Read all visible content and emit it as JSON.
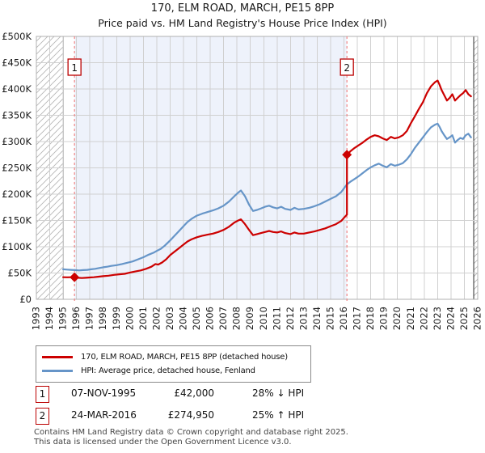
{
  "page": {
    "title": "170, ELM ROAD, MARCH, PE15 8PP",
    "subtitle": "Price paid vs. HM Land Registry's House Price Index (HPI)"
  },
  "chart_data": {
    "type": "line",
    "title": "170, ELM ROAD, MARCH, PE15 8PP — Price paid vs. HPI",
    "x_axis": {
      "min": 1993,
      "max": 2026,
      "ticks": [
        1993,
        1994,
        1995,
        1996,
        1997,
        1998,
        1999,
        2000,
        2001,
        2002,
        2003,
        2004,
        2005,
        2006,
        2007,
        2008,
        2009,
        2010,
        2011,
        2012,
        2013,
        2014,
        2015,
        2016,
        2017,
        2018,
        2019,
        2020,
        2021,
        2022,
        2023,
        2024,
        2025,
        2026
      ]
    },
    "y_axis": {
      "min": 0,
      "max": 500000,
      "ticks": [
        {
          "value": 0,
          "label": "£0"
        },
        {
          "value": 50000,
          "label": "£50K"
        },
        {
          "value": 100000,
          "label": "£100K"
        },
        {
          "value": 150000,
          "label": "£150K"
        },
        {
          "value": 200000,
          "label": "£200K"
        },
        {
          "value": 250000,
          "label": "£250K"
        },
        {
          "value": 300000,
          "label": "£300K"
        },
        {
          "value": 350000,
          "label": "£350K"
        },
        {
          "value": 400000,
          "label": "£400K"
        },
        {
          "value": 450000,
          "label": "£450K"
        },
        {
          "value": 500000,
          "label": "£500K"
        }
      ]
    },
    "grid": true,
    "colors": {
      "grid": "#d0d0d0",
      "frame": "#b0b0b0",
      "boundary": "#4d4d4d",
      "dashed_line": "#f07a7a",
      "hatch": "#b3b3b3",
      "badge_border": "#bb0000",
      "shade": "#eef2fb"
    },
    "shaded_span": {
      "from": 1995.85,
      "to": 2016.22
    },
    "hatched_regions": [
      {
        "from": 1993.0,
        "to": 1995.0,
        "edge": "right"
      },
      {
        "from": 2025.7,
        "to": 2026.0,
        "edge": "left"
      }
    ],
    "series": [
      {
        "name": "170, ELM ROAD, MARCH, PE15 8PP (detached house)",
        "color": "#cc0000",
        "points": [
          [
            1995.0,
            42000
          ],
          [
            1995.3,
            41800
          ],
          [
            1995.6,
            42000
          ],
          [
            1995.85,
            42000
          ],
          [
            1996.1,
            41000
          ],
          [
            1996.4,
            40500
          ],
          [
            1996.7,
            41000
          ],
          [
            1997.0,
            41500
          ],
          [
            1997.3,
            42000
          ],
          [
            1997.6,
            43000
          ],
          [
            1998.0,
            44000
          ],
          [
            1998.4,
            45000
          ],
          [
            1998.8,
            46500
          ],
          [
            1999.2,
            47500
          ],
          [
            1999.6,
            48500
          ],
          [
            2000.0,
            51000
          ],
          [
            2000.4,
            53000
          ],
          [
            2000.8,
            55000
          ],
          [
            2001.2,
            58000
          ],
          [
            2001.6,
            62000
          ],
          [
            2001.9,
            67000
          ],
          [
            2002.1,
            66000
          ],
          [
            2002.4,
            70000
          ],
          [
            2002.7,
            76000
          ],
          [
            2003.0,
            84000
          ],
          [
            2003.3,
            90000
          ],
          [
            2003.6,
            96000
          ],
          [
            2004.0,
            104000
          ],
          [
            2004.3,
            110000
          ],
          [
            2004.6,
            114000
          ],
          [
            2005.0,
            118000
          ],
          [
            2005.4,
            121000
          ],
          [
            2005.8,
            123000
          ],
          [
            2006.2,
            125000
          ],
          [
            2006.6,
            128000
          ],
          [
            2007.0,
            132000
          ],
          [
            2007.4,
            138000
          ],
          [
            2007.8,
            146000
          ],
          [
            2008.1,
            150000
          ],
          [
            2008.3,
            152000
          ],
          [
            2008.6,
            143000
          ],
          [
            2008.9,
            132000
          ],
          [
            2009.2,
            122000
          ],
          [
            2009.5,
            124000
          ],
          [
            2009.8,
            126000
          ],
          [
            2010.1,
            128000
          ],
          [
            2010.4,
            130000
          ],
          [
            2010.7,
            128000
          ],
          [
            2011.0,
            127000
          ],
          [
            2011.3,
            129000
          ],
          [
            2011.6,
            126000
          ],
          [
            2012.0,
            124000
          ],
          [
            2012.3,
            127000
          ],
          [
            2012.6,
            125000
          ],
          [
            2013.0,
            125000
          ],
          [
            2013.4,
            127000
          ],
          [
            2013.8,
            129000
          ],
          [
            2014.2,
            132000
          ],
          [
            2014.6,
            135000
          ],
          [
            2015.0,
            139000
          ],
          [
            2015.4,
            143000
          ],
          [
            2015.8,
            149000
          ],
          [
            2016.0,
            155000
          ],
          [
            2016.22,
            161000
          ],
          [
            2016.22,
            274950
          ],
          [
            2016.5,
            282000
          ],
          [
            2016.8,
            288000
          ],
          [
            2017.1,
            293000
          ],
          [
            2017.4,
            298000
          ],
          [
            2017.7,
            304000
          ],
          [
            2018.0,
            309000
          ],
          [
            2018.3,
            312000
          ],
          [
            2018.6,
            310000
          ],
          [
            2018.9,
            306000
          ],
          [
            2019.2,
            303000
          ],
          [
            2019.5,
            309000
          ],
          [
            2019.8,
            306000
          ],
          [
            2020.1,
            308000
          ],
          [
            2020.4,
            312000
          ],
          [
            2020.7,
            320000
          ],
          [
            2021.0,
            335000
          ],
          [
            2021.3,
            348000
          ],
          [
            2021.6,
            362000
          ],
          [
            2021.9,
            375000
          ],
          [
            2022.2,
            392000
          ],
          [
            2022.5,
            405000
          ],
          [
            2022.8,
            413000
          ],
          [
            2023.0,
            416000
          ],
          [
            2023.15,
            408000
          ],
          [
            2023.3,
            398000
          ],
          [
            2023.5,
            388000
          ],
          [
            2023.7,
            378000
          ],
          [
            2023.9,
            383000
          ],
          [
            2024.1,
            390000
          ],
          [
            2024.3,
            378000
          ],
          [
            2024.5,
            383000
          ],
          [
            2024.7,
            388000
          ],
          [
            2024.9,
            392000
          ],
          [
            2025.1,
            398000
          ],
          [
            2025.3,
            390000
          ],
          [
            2025.5,
            386000
          ]
        ]
      },
      {
        "name": "HPI: Average price, detached house, Fenland",
        "color": "#6695c8",
        "points": [
          [
            1995.0,
            57000
          ],
          [
            1995.3,
            56500
          ],
          [
            1995.6,
            56000
          ],
          [
            1995.9,
            55500
          ],
          [
            1996.2,
            55000
          ],
          [
            1996.5,
            55500
          ],
          [
            1996.8,
            56000
          ],
          [
            1997.1,
            57000
          ],
          [
            1997.4,
            58000
          ],
          [
            1997.7,
            59500
          ],
          [
            1998.0,
            61000
          ],
          [
            1998.3,
            62000
          ],
          [
            1998.6,
            63500
          ],
          [
            1999.0,
            65000
          ],
          [
            1999.4,
            67000
          ],
          [
            1999.8,
            69500
          ],
          [
            2000.2,
            72000
          ],
          [
            2000.6,
            76000
          ],
          [
            2001.0,
            80000
          ],
          [
            2001.4,
            85000
          ],
          [
            2001.8,
            89000
          ],
          [
            2002.0,
            92000
          ],
          [
            2002.3,
            96000
          ],
          [
            2002.6,
            102000
          ],
          [
            2003.0,
            112000
          ],
          [
            2003.3,
            120000
          ],
          [
            2003.6,
            128000
          ],
          [
            2004.0,
            139000
          ],
          [
            2004.3,
            147000
          ],
          [
            2004.6,
            153000
          ],
          [
            2005.0,
            159000
          ],
          [
            2005.4,
            163000
          ],
          [
            2005.8,
            166000
          ],
          [
            2006.2,
            169000
          ],
          [
            2006.6,
            173000
          ],
          [
            2007.0,
            178000
          ],
          [
            2007.4,
            186000
          ],
          [
            2007.8,
            196000
          ],
          [
            2008.1,
            203000
          ],
          [
            2008.3,
            207000
          ],
          [
            2008.6,
            196000
          ],
          [
            2008.9,
            180000
          ],
          [
            2009.2,
            168000
          ],
          [
            2009.5,
            170000
          ],
          [
            2009.8,
            173000
          ],
          [
            2010.1,
            176000
          ],
          [
            2010.4,
            178000
          ],
          [
            2010.7,
            175000
          ],
          [
            2011.0,
            173000
          ],
          [
            2011.3,
            176000
          ],
          [
            2011.6,
            172000
          ],
          [
            2012.0,
            170000
          ],
          [
            2012.3,
            174000
          ],
          [
            2012.6,
            171000
          ],
          [
            2013.0,
            172000
          ],
          [
            2013.4,
            174000
          ],
          [
            2013.8,
            177000
          ],
          [
            2014.2,
            181000
          ],
          [
            2014.6,
            186000
          ],
          [
            2015.0,
            191000
          ],
          [
            2015.4,
            196000
          ],
          [
            2015.8,
            204000
          ],
          [
            2016.2,
            218000
          ],
          [
            2016.5,
            224000
          ],
          [
            2016.8,
            229000
          ],
          [
            2017.1,
            234000
          ],
          [
            2017.4,
            240000
          ],
          [
            2017.7,
            246000
          ],
          [
            2018.0,
            251000
          ],
          [
            2018.3,
            255000
          ],
          [
            2018.6,
            258000
          ],
          [
            2018.9,
            254000
          ],
          [
            2019.2,
            251000
          ],
          [
            2019.5,
            257000
          ],
          [
            2019.8,
            254000
          ],
          [
            2020.1,
            256000
          ],
          [
            2020.4,
            259000
          ],
          [
            2020.7,
            266000
          ],
          [
            2021.0,
            276000
          ],
          [
            2021.3,
            288000
          ],
          [
            2021.6,
            298000
          ],
          [
            2021.9,
            308000
          ],
          [
            2022.2,
            318000
          ],
          [
            2022.5,
            327000
          ],
          [
            2022.8,
            332000
          ],
          [
            2023.0,
            334000
          ],
          [
            2023.15,
            328000
          ],
          [
            2023.3,
            320000
          ],
          [
            2023.5,
            312000
          ],
          [
            2023.7,
            305000
          ],
          [
            2023.9,
            308000
          ],
          [
            2024.1,
            312000
          ],
          [
            2024.3,
            298000
          ],
          [
            2024.5,
            303000
          ],
          [
            2024.7,
            307000
          ],
          [
            2024.9,
            305000
          ],
          [
            2025.1,
            312000
          ],
          [
            2025.3,
            315000
          ],
          [
            2025.5,
            308000
          ]
        ]
      }
    ],
    "sales": [
      {
        "n": "1",
        "x": 1995.85,
        "y": 42000
      },
      {
        "n": "2",
        "x": 2016.22,
        "y": 274950
      }
    ],
    "legend_position": "bottom-left"
  },
  "table": {
    "rows": [
      {
        "n": "1",
        "date": "07-NOV-1995",
        "price": "£42,000",
        "delta": "28% ↓ HPI"
      },
      {
        "n": "2",
        "date": "24-MAR-2016",
        "price": "£274,950",
        "delta": "25% ↑ HPI"
      }
    ]
  },
  "footer": {
    "line1": "Contains HM Land Registry data © Crown copyright and database right 2025.",
    "line2": "This data is licensed under the Open Government Licence v3.0."
  }
}
